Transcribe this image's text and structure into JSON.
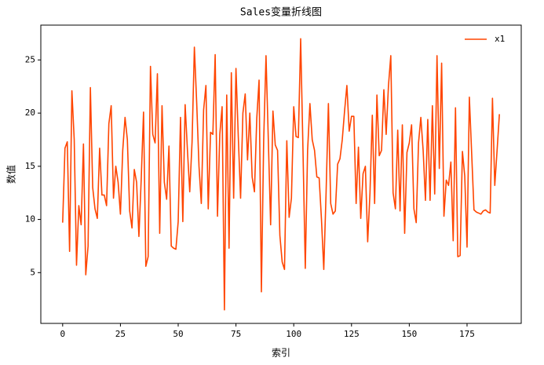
{
  "chart_data": {
    "type": "line",
    "title": "Sales变量折线图",
    "x_label": "索引",
    "y_label": "数值",
    "x": [
      0,
      1,
      2,
      3,
      4,
      5,
      6,
      7,
      8,
      9,
      10,
      11,
      12,
      13,
      14,
      15,
      16,
      17,
      18,
      19,
      20,
      21,
      22,
      23,
      24,
      25,
      26,
      27,
      28,
      29,
      30,
      31,
      32,
      33,
      34,
      35,
      36,
      37,
      38,
      39,
      40,
      41,
      42,
      43,
      44,
      45,
      46,
      47,
      48,
      49,
      50,
      51,
      52,
      53,
      54,
      55,
      56,
      57,
      58,
      59,
      60,
      61,
      62,
      63,
      64,
      65,
      66,
      67,
      68,
      69,
      70,
      71,
      72,
      73,
      74,
      75,
      76,
      77,
      78,
      79,
      80,
      81,
      82,
      83,
      84,
      85,
      86,
      87,
      88,
      89,
      90,
      91,
      92,
      93,
      94,
      95,
      96,
      97,
      98,
      99,
      100,
      101,
      102,
      103,
      104,
      105,
      106,
      107,
      108,
      109,
      110,
      111,
      112,
      113,
      114,
      115,
      116,
      117,
      118,
      119,
      120,
      121,
      122,
      123,
      124,
      125,
      126,
      127,
      128,
      129,
      130,
      131,
      132,
      133,
      134,
      135,
      136,
      137,
      138,
      139,
      140,
      141,
      142,
      143,
      144,
      145,
      146,
      147,
      148,
      149,
      150,
      151,
      152,
      153,
      154,
      155,
      156,
      157,
      158,
      159,
      160,
      161,
      162,
      163,
      164,
      165,
      166,
      167,
      168,
      169,
      170,
      171,
      172,
      173,
      174,
      175,
      176,
      177,
      178,
      179,
      180,
      181,
      182,
      183,
      184,
      185,
      186,
      187,
      188,
      189
    ],
    "series": [
      {
        "name": "x1",
        "color": "#ff4500",
        "values": [
          9.7,
          16.7,
          17.3,
          7.0,
          22.1,
          17.5,
          5.7,
          11.3,
          9.5,
          17.1,
          4.8,
          7.5,
          22.4,
          13.0,
          11.0,
          10.1,
          16.7,
          12.3,
          12.3,
          11.3,
          19.0,
          20.7,
          12.0,
          15.0,
          13.5,
          10.5,
          16.5,
          19.6,
          17.5,
          10.8,
          9.2,
          14.7,
          13.5,
          8.4,
          13.8,
          20.1,
          5.6,
          6.5,
          24.4,
          18.0,
          17.2,
          23.7,
          8.7,
          20.7,
          13.5,
          11.9,
          16.9,
          7.5,
          7.3,
          7.2,
          9.8,
          19.6,
          9.8,
          20.8,
          16.5,
          12.6,
          17.3,
          26.2,
          21.0,
          15.0,
          11.5,
          20.3,
          22.6,
          11.0,
          18.2,
          18.0,
          25.5,
          10.3,
          18.0,
          20.6,
          1.5,
          21.7,
          7.3,
          23.8,
          12.0,
          24.2,
          17.8,
          12.0,
          20.0,
          21.8,
          15.6,
          20.0,
          14.0,
          12.6,
          19.5,
          23.1,
          3.2,
          17.5,
          25.4,
          17.5,
          9.5,
          20.2,
          17.0,
          16.5,
          8.5,
          6.0,
          5.3,
          17.4,
          10.2,
          12.0,
          20.6,
          17.8,
          17.7,
          27.0,
          16.5,
          5.4,
          16.5,
          20.9,
          17.5,
          16.5,
          14.0,
          13.9,
          10.0,
          5.3,
          12.5,
          20.9,
          11.5,
          10.5,
          10.8,
          15.2,
          15.7,
          17.5,
          20.2,
          22.6,
          18.3,
          19.7,
          19.7,
          11.5,
          16.8,
          10.1,
          14.3,
          15.0,
          7.9,
          12.5,
          19.8,
          11.5,
          21.7,
          16.0,
          16.5,
          22.2,
          18.0,
          22.6,
          25.4,
          12.5,
          11.0,
          18.4,
          10.8,
          18.9,
          8.7,
          16.3,
          17.2,
          18.9,
          11.0,
          9.7,
          17.2,
          19.6,
          16.5,
          11.8,
          19.4,
          11.8,
          20.7,
          12.4,
          25.4,
          14.8,
          24.7,
          10.3,
          13.7,
          13.2,
          15.4,
          8.0,
          20.5,
          6.5,
          6.6,
          16.4,
          14.1,
          7.4,
          21.5,
          16.2,
          10.9,
          10.7,
          10.6,
          10.5,
          10.8,
          10.9,
          10.7,
          10.6,
          21.4,
          13.2,
          16.5,
          19.9
        ]
      }
    ],
    "xlim": [
      -9.45,
      198.45
    ],
    "xticks": [
      0,
      25,
      50,
      75,
      100,
      125,
      150,
      175
    ],
    "ylim": [
      0.225,
      28.275
    ],
    "yticks": [
      5,
      10,
      15,
      20,
      25
    ],
    "grid": false,
    "legend": "upper right"
  }
}
